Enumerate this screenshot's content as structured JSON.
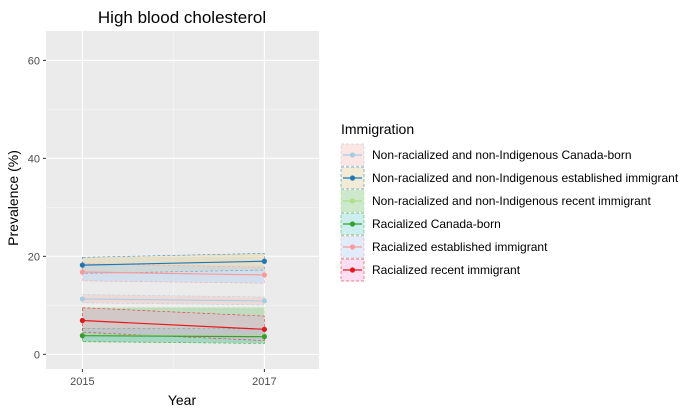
{
  "chart_data": {
    "type": "line",
    "title": "High blood cholesterol",
    "xlabel": "Year",
    "ylabel": "Prevalence (%)",
    "x": [
      2015,
      2017
    ],
    "xlim": [
      2014.6,
      2017.6
    ],
    "ylim": [
      -3,
      66
    ],
    "xticks": [
      2015,
      2017
    ],
    "yticks": [
      0,
      20,
      40,
      60
    ],
    "grid": true,
    "legend": {
      "title": "Immigration",
      "placement": "right"
    },
    "series": [
      {
        "name": "Non-racialized and non-Indigenous Canada-born",
        "values": [
          11.3,
          10.9
        ],
        "lower": [
          10.5,
          10.1
        ],
        "upper": [
          12.2,
          11.7
        ],
        "color": "#a6cee3",
        "fill": "#f5b7b1"
      },
      {
        "name": "Non-racialized and non-Indigenous established immigrant",
        "values": [
          18.2,
          19.0
        ],
        "lower": [
          16.5,
          17.2
        ],
        "upper": [
          19.8,
          20.6
        ],
        "color": "#1f78b4",
        "fill": "#d9c98a"
      },
      {
        "name": "Non-racialized and non-Indigenous recent immigrant",
        "values": [
          3.9,
          3.8
        ],
        "lower": [
          2.5,
          2.3
        ],
        "upper": [
          9.5,
          9.5
        ],
        "color": "#b2df8a",
        "fill": "#6cc06e"
      },
      {
        "name": "Racialized Canada-born",
        "values": [
          3.8,
          3.6
        ],
        "lower": [
          2.6,
          2.2
        ],
        "upper": [
          5.3,
          5.2
        ],
        "color": "#33a02c",
        "fill": "#6fcfcf"
      },
      {
        "name": "Racialized established immigrant",
        "values": [
          16.8,
          16.2
        ],
        "lower": [
          15.0,
          14.5
        ],
        "upper": [
          18.5,
          17.8
        ],
        "color": "#fb9a99",
        "fill": "#a6c8f0"
      },
      {
        "name": "Racialized recent immigrant",
        "values": [
          6.9,
          5.1
        ],
        "lower": [
          4.5,
          2.8
        ],
        "upper": [
          9.5,
          7.8
        ],
        "color": "#e31a1c",
        "fill": "#f5a3d9"
      }
    ]
  }
}
